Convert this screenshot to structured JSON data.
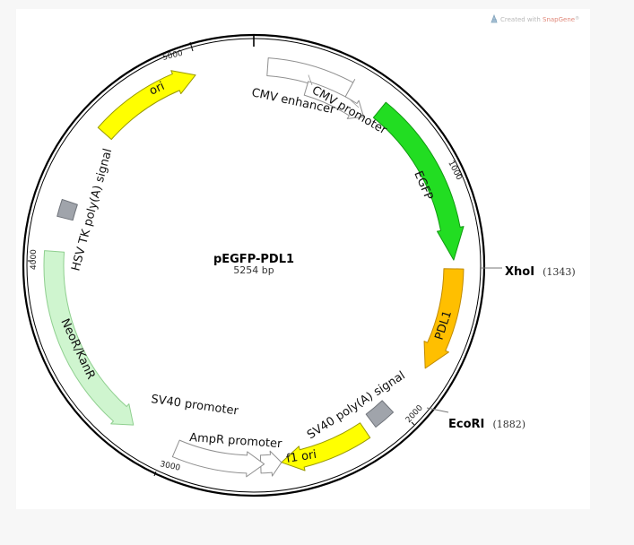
{
  "credit": {
    "prefix": "Created with",
    "brand": "SnapGene",
    "mark": "®"
  },
  "plasmid": {
    "name": "pEGFP-PDL1",
    "size": "5254 bp"
  },
  "ticks": [
    "5000",
    "1000",
    "2000",
    "3000",
    "4000"
  ],
  "features": [
    {
      "id": "ori",
      "label": "ori",
      "color": "#ffff00",
      "stroke": "#999900"
    },
    {
      "id": "cmv-enhancer",
      "label": "CMV enhancer",
      "color": "#ffffff",
      "stroke": "#909090"
    },
    {
      "id": "cmv-promoter",
      "label": "CMV promoter",
      "color": "#ffffff",
      "stroke": "#909090"
    },
    {
      "id": "egfp",
      "label": "EGFP",
      "color": "#22dd22",
      "stroke": "#119911"
    },
    {
      "id": "pdl1",
      "label": "PDL1",
      "color": "#ffbf00",
      "stroke": "#c08a00"
    },
    {
      "id": "sv40-polya",
      "label": "SV40 poly(A) signal",
      "color": "#a0a4ab",
      "stroke": "#6f737a"
    },
    {
      "id": "f1-ori",
      "label": "f1 ori",
      "color": "#ffff00",
      "stroke": "#999900"
    },
    {
      "id": "ampr-promoter",
      "label": "AmpR promoter",
      "color": "#ffffff",
      "stroke": "#909090"
    },
    {
      "id": "sv40-promoter",
      "label": "SV40 promoter",
      "color": "#ffffff",
      "stroke": "#909090"
    },
    {
      "id": "neor-kanr",
      "label": "NeoR/KanR",
      "color": "#cff5cf",
      "stroke": "#8fcf8f"
    },
    {
      "id": "hsv-tk-polya",
      "label": "HSV TK poly(A) signal",
      "color": "#a0a4ab",
      "stroke": "#6f737a"
    }
  ],
  "sites": [
    {
      "name": "XhoI",
      "pos": "(1343)"
    },
    {
      "name": "EcoRI",
      "pos": "(1882)"
    }
  ]
}
